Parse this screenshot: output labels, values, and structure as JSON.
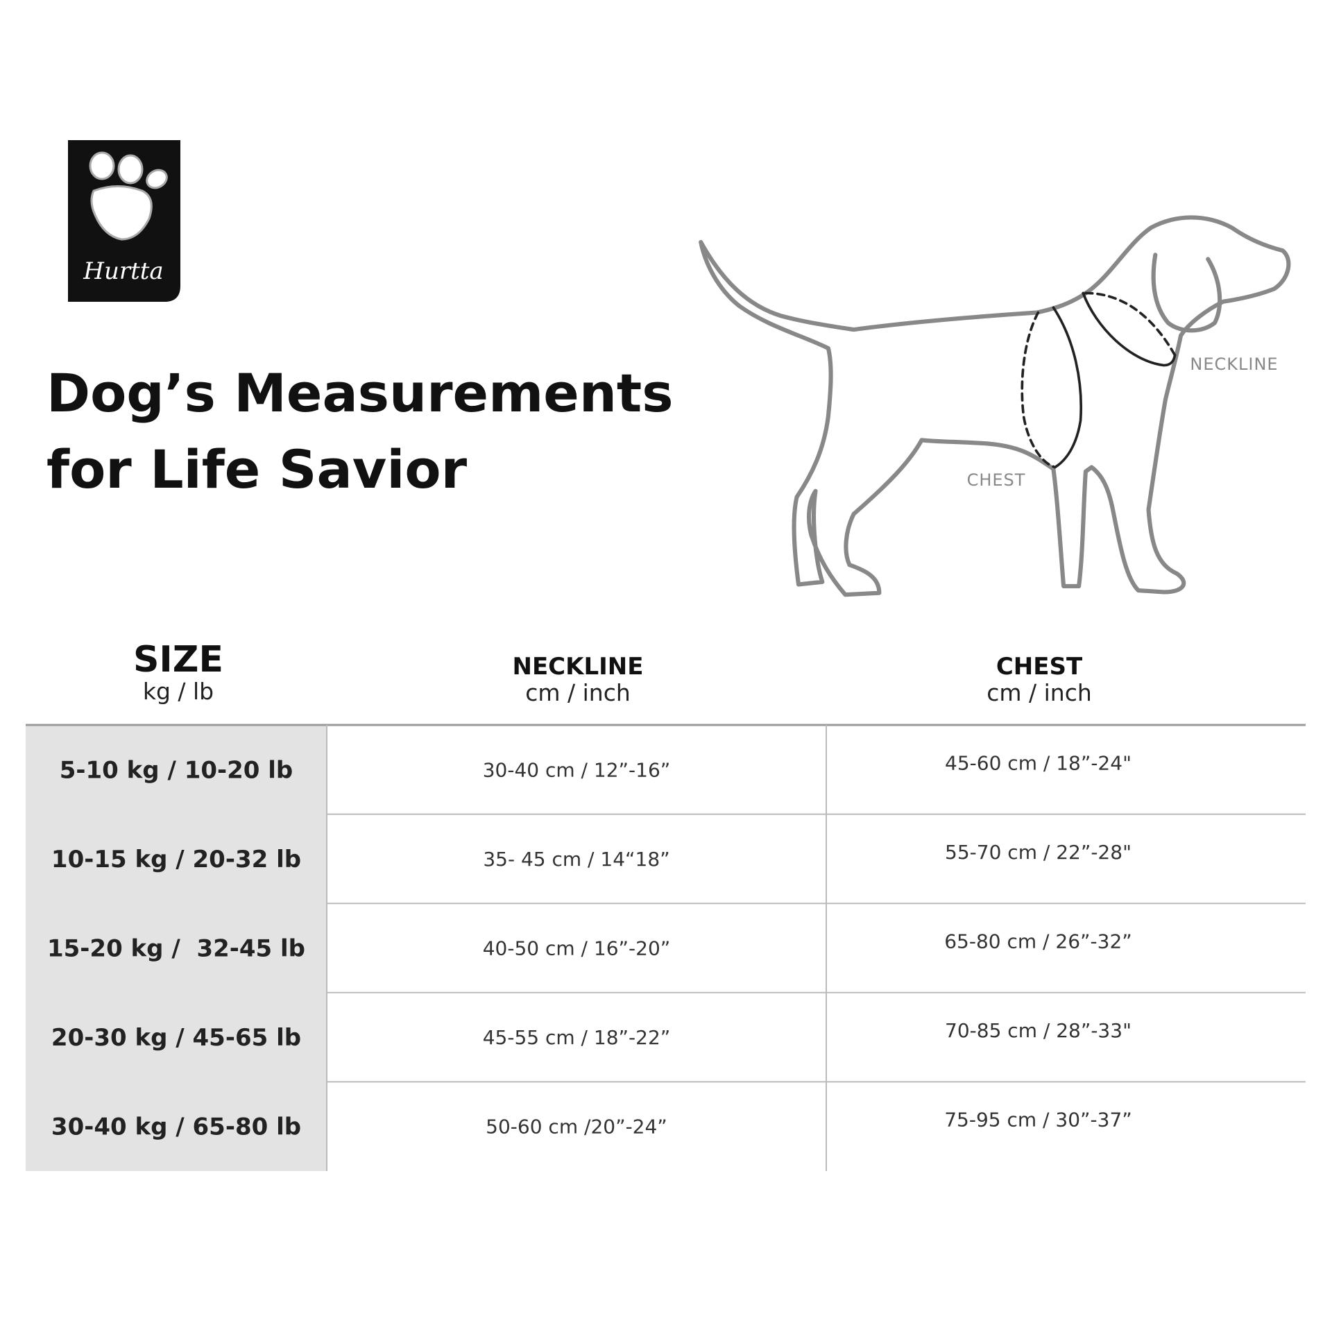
{
  "logo": {
    "text": "Hurtta"
  },
  "header": {
    "title": [
      "Dog’s Measurements",
      "for Life Savior"
    ]
  },
  "diagram": {
    "labels": {
      "neckline": "NECKLINE",
      "chest": "CHEST"
    }
  },
  "table": {
    "columns": [
      {
        "title": "SIZE",
        "unit": "kg / lb"
      },
      {
        "title": "NECKLINE",
        "unit": "cm / inch"
      },
      {
        "title": "CHEST",
        "unit": "cm / inch"
      }
    ],
    "rows": [
      [
        "5-10 kg / 10-20 lb",
        "30-40 cm / 12”-16”",
        "45-60 cm / 18”-24\""
      ],
      [
        "10-15 kg / 20-32 lb",
        "35- 45 cm / 14“18”",
        "55-70 cm / 22”-28\""
      ],
      [
        "15-20 kg /  32-45 lb",
        "40-50 cm / 16”-20”",
        "65-80 cm / 26”-32”"
      ],
      [
        "20-30 kg / 45-65 lb",
        "45-55 cm / 18”-22”",
        "70-85 cm / 28”-33\""
      ],
      [
        "30-40 kg / 65-80 lb",
        "50-60 cm /20”-24”",
        "75-95 cm / 30”-37”"
      ]
    ]
  }
}
